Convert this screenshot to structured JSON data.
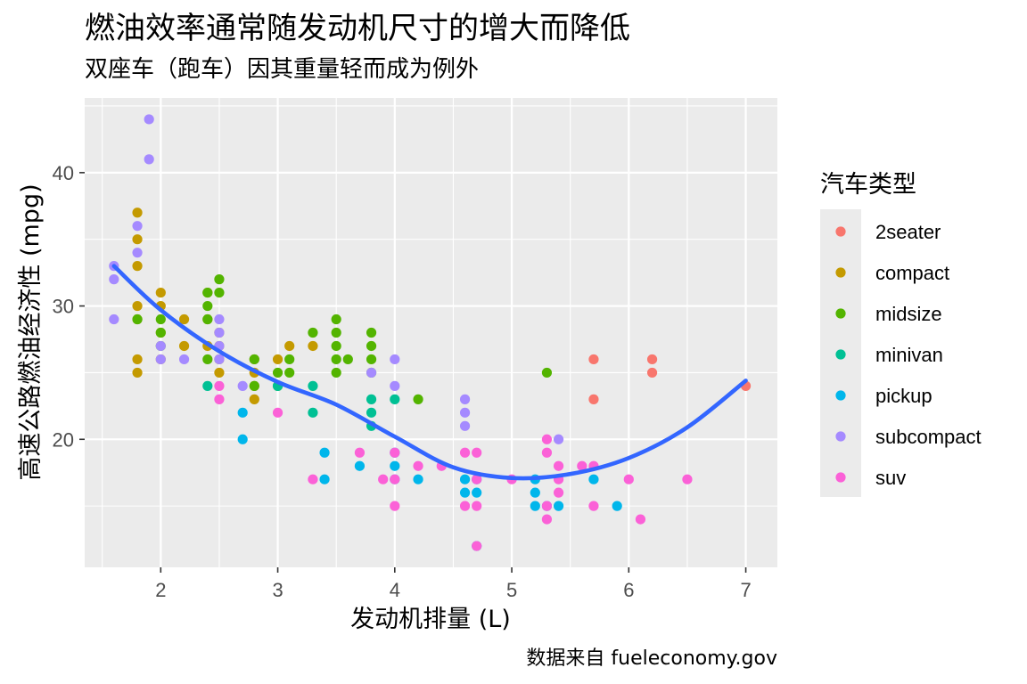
{
  "chart_data": {
    "type": "scatter",
    "title": "燃油效率通常随发动机尺寸的增大而降低",
    "subtitle": "双座车（跑车）因其重量轻而成为例外",
    "caption": "数据来自 fueleconomy.gov",
    "xlabel": "发动机排量 (L)",
    "ylabel": "高速公路燃油经济性 (mpg)",
    "xlim": [
      1.35,
      7.27
    ],
    "ylim": [
      10.4,
      45.6
    ],
    "x_ticks": [
      2,
      3,
      4,
      5,
      6,
      7
    ],
    "y_ticks": [
      20,
      30,
      40
    ],
    "grid": true,
    "legend": {
      "title": "汽车类型",
      "position": "right"
    },
    "series": [
      {
        "name": "2seater",
        "color": "#F8766D",
        "points": [
          [
            5.7,
            26
          ],
          [
            5.7,
            23
          ],
          [
            6.2,
            26
          ],
          [
            6.2,
            25
          ],
          [
            7.0,
            24
          ]
        ]
      },
      {
        "name": "compact",
        "color": "#C49A00",
        "points": [
          [
            1.8,
            37
          ],
          [
            1.8,
            35
          ],
          [
            1.8,
            33
          ],
          [
            1.8,
            30
          ],
          [
            1.8,
            29
          ],
          [
            1.8,
            26
          ],
          [
            1.8,
            25
          ],
          [
            2.0,
            31
          ],
          [
            2.0,
            30
          ],
          [
            2.0,
            28
          ],
          [
            2.0,
            26
          ],
          [
            2.2,
            29
          ],
          [
            2.2,
            27
          ],
          [
            2.4,
            31
          ],
          [
            2.4,
            29
          ],
          [
            2.4,
            27
          ],
          [
            2.5,
            28
          ],
          [
            2.5,
            27
          ],
          [
            2.5,
            26
          ],
          [
            2.5,
            25
          ],
          [
            2.8,
            26
          ],
          [
            2.8,
            25
          ],
          [
            2.8,
            24
          ],
          [
            2.8,
            23
          ],
          [
            3.0,
            26
          ],
          [
            3.1,
            27
          ],
          [
            3.3,
            27
          ]
        ]
      },
      {
        "name": "midsize",
        "color": "#53B400",
        "points": [
          [
            1.8,
            29
          ],
          [
            2.0,
            29
          ],
          [
            2.0,
            28
          ],
          [
            2.0,
            27
          ],
          [
            2.4,
            31
          ],
          [
            2.4,
            30
          ],
          [
            2.4,
            29
          ],
          [
            2.4,
            26
          ],
          [
            2.5,
            32
          ],
          [
            2.5,
            31
          ],
          [
            2.8,
            26
          ],
          [
            2.8,
            24
          ],
          [
            3.0,
            25
          ],
          [
            3.0,
            24
          ],
          [
            3.1,
            26
          ],
          [
            3.1,
            25
          ],
          [
            3.3,
            28
          ],
          [
            3.5,
            29
          ],
          [
            3.5,
            28
          ],
          [
            3.5,
            27
          ],
          [
            3.5,
            26
          ],
          [
            3.5,
            25
          ],
          [
            3.6,
            26
          ],
          [
            3.8,
            28
          ],
          [
            3.8,
            27
          ],
          [
            3.8,
            26
          ],
          [
            3.8,
            25
          ],
          [
            4.2,
            23
          ],
          [
            5.3,
            25
          ]
        ]
      },
      {
        "name": "minivan",
        "color": "#00C094",
        "points": [
          [
            2.4,
            24
          ],
          [
            3.0,
            24
          ],
          [
            3.3,
            24
          ],
          [
            3.3,
            22
          ],
          [
            3.8,
            23
          ],
          [
            3.8,
            22
          ],
          [
            3.8,
            21
          ],
          [
            4.0,
            23
          ]
        ]
      },
      {
        "name": "pickup",
        "color": "#00B6EB",
        "points": [
          [
            2.7,
            22
          ],
          [
            2.7,
            20
          ],
          [
            3.4,
            19
          ],
          [
            3.4,
            17
          ],
          [
            3.7,
            18
          ],
          [
            4.0,
            19
          ],
          [
            4.0,
            18
          ],
          [
            4.0,
            17
          ],
          [
            4.2,
            17
          ],
          [
            4.6,
            17
          ],
          [
            4.6,
            16
          ],
          [
            4.7,
            17
          ],
          [
            4.7,
            16
          ],
          [
            4.7,
            12
          ],
          [
            5.2,
            17
          ],
          [
            5.2,
            16
          ],
          [
            5.2,
            15
          ],
          [
            5.3,
            15
          ],
          [
            5.4,
            15
          ],
          [
            5.7,
            17
          ],
          [
            5.9,
            15
          ]
        ]
      },
      {
        "name": "subcompact",
        "color": "#A58AFF",
        "points": [
          [
            1.6,
            33
          ],
          [
            1.6,
            32
          ],
          [
            1.6,
            29
          ],
          [
            1.8,
            36
          ],
          [
            1.8,
            34
          ],
          [
            1.9,
            44
          ],
          [
            1.9,
            41
          ],
          [
            2.0,
            27
          ],
          [
            2.0,
            26
          ],
          [
            2.2,
            26
          ],
          [
            2.5,
            29
          ],
          [
            2.5,
            28
          ],
          [
            2.5,
            27
          ],
          [
            2.5,
            26
          ],
          [
            2.7,
            24
          ],
          [
            3.8,
            25
          ],
          [
            4.0,
            26
          ],
          [
            4.0,
            24
          ],
          [
            4.6,
            23
          ],
          [
            4.6,
            22
          ],
          [
            4.6,
            21
          ],
          [
            5.4,
            20
          ]
        ]
      },
      {
        "name": "suv",
        "color": "#FB61D7",
        "points": [
          [
            2.5,
            24
          ],
          [
            2.5,
            23
          ],
          [
            3.0,
            22
          ],
          [
            3.3,
            17
          ],
          [
            3.7,
            19
          ],
          [
            3.9,
            17
          ],
          [
            4.0,
            19
          ],
          [
            4.0,
            17
          ],
          [
            4.0,
            15
          ],
          [
            4.2,
            18
          ],
          [
            4.4,
            18
          ],
          [
            4.6,
            19
          ],
          [
            4.6,
            15
          ],
          [
            4.7,
            19
          ],
          [
            4.7,
            17
          ],
          [
            4.7,
            15
          ],
          [
            4.7,
            12
          ],
          [
            5.0,
            17
          ],
          [
            5.3,
            20
          ],
          [
            5.3,
            19
          ],
          [
            5.3,
            15
          ],
          [
            5.3,
            14
          ],
          [
            5.4,
            18
          ],
          [
            5.4,
            17
          ],
          [
            5.4,
            16
          ],
          [
            5.6,
            18
          ],
          [
            5.7,
            18
          ],
          [
            5.7,
            15
          ],
          [
            6.0,
            17
          ],
          [
            6.1,
            14
          ],
          [
            6.5,
            17
          ]
        ]
      }
    ],
    "smooth": {
      "color": "#3366FF",
      "points": [
        [
          1.6,
          33.0
        ],
        [
          2.0,
          29.7
        ],
        [
          2.5,
          26.6
        ],
        [
          3.0,
          24.3
        ],
        [
          3.5,
          22.6
        ],
        [
          4.0,
          20.2
        ],
        [
          4.5,
          17.9
        ],
        [
          5.0,
          17.1
        ],
        [
          5.5,
          17.4
        ],
        [
          6.0,
          18.6
        ],
        [
          6.5,
          20.9
        ],
        [
          7.0,
          24.4
        ]
      ]
    }
  }
}
